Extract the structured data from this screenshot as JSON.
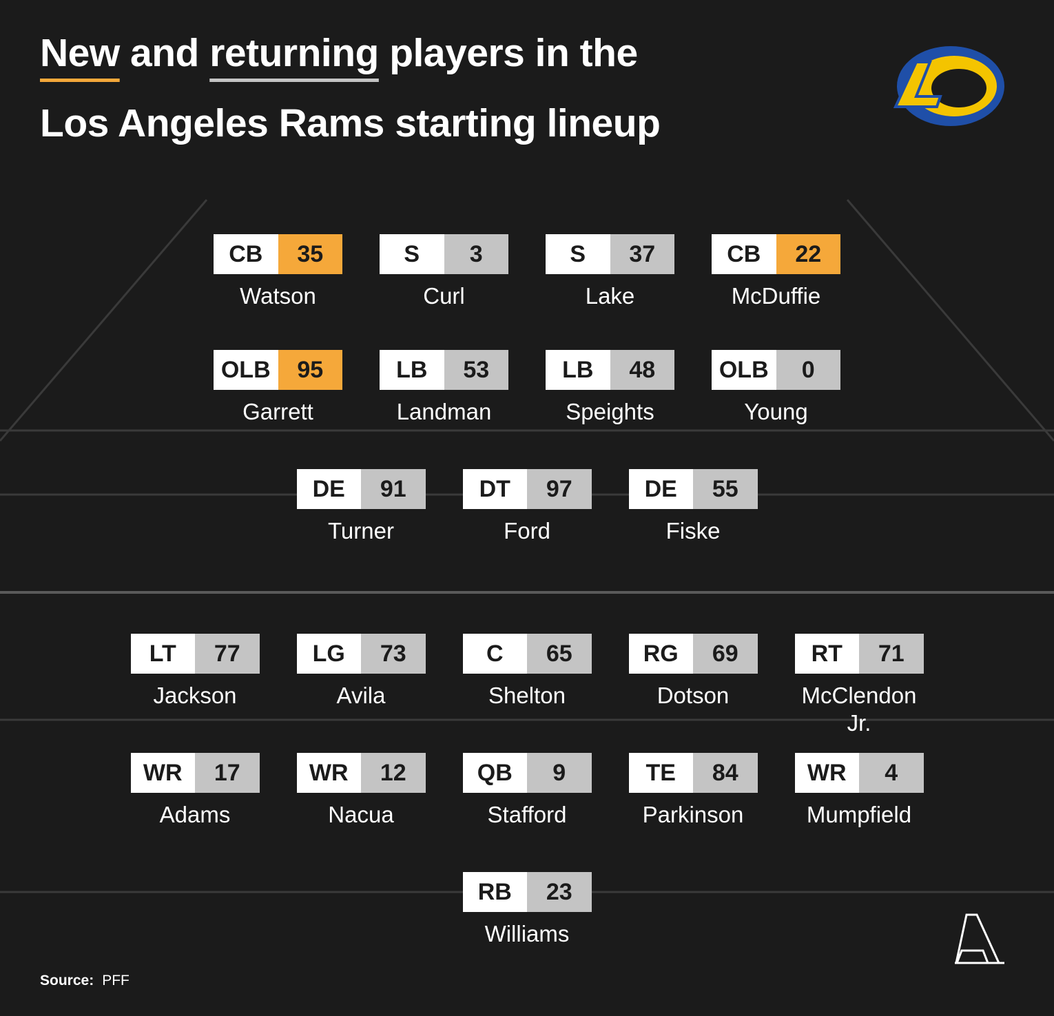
{
  "title": {
    "line1": [
      {
        "text": "New",
        "underline": "#f5a83a"
      },
      {
        "text": " and "
      },
      {
        "text": "returning",
        "underline": "#c4c4c4"
      },
      {
        "text": " players in the"
      }
    ],
    "line2": "Los Angeles Rams starting lineup"
  },
  "formation": [
    [
      {
        "position": "CB",
        "number": 35,
        "name": "Watson",
        "color": "#f5a83a"
      },
      {
        "position": "S",
        "number": 3,
        "name": "Curl",
        "color": "#c4c4c4"
      },
      {
        "position": "S",
        "number": 37,
        "name": "Lake",
        "color": "#c4c4c4"
      },
      {
        "position": "CB",
        "number": 22,
        "name": "McDuffie",
        "color": "#f5a83a"
      }
    ],
    [
      {
        "position": "OLB",
        "number": 95,
        "name": "Garrett",
        "color": "#f5a83a"
      },
      {
        "position": "LB",
        "number": 53,
        "name": "Landman",
        "color": "#c4c4c4"
      },
      {
        "position": "LB",
        "number": 48,
        "name": "Speights",
        "color": "#c4c4c4"
      },
      {
        "position": "OLB",
        "number": 0,
        "name": "Young",
        "color": "#c4c4c4"
      }
    ],
    [
      {
        "position": "DE",
        "number": 91,
        "name": "Turner",
        "color": "#c4c4c4"
      },
      {
        "position": "DT",
        "number": 97,
        "name": "Ford",
        "color": "#c4c4c4"
      },
      {
        "position": "DE",
        "number": 55,
        "name": "Fiske",
        "color": "#c4c4c4"
      }
    ],
    [
      {
        "position": "LT",
        "number": 77,
        "name": "Jackson",
        "color": "#c4c4c4"
      },
      {
        "position": "LG",
        "number": 73,
        "name": "Avila",
        "color": "#c4c4c4"
      },
      {
        "position": "C",
        "number": 65,
        "name": "Shelton",
        "color": "#c4c4c4"
      },
      {
        "position": "RG",
        "number": 69,
        "name": "Dotson",
        "color": "#c4c4c4"
      },
      {
        "position": "RT",
        "number": 71,
        "name": "McClendon Jr.",
        "color": "#c4c4c4"
      }
    ],
    [
      {
        "position": "WR",
        "number": 17,
        "name": "Adams",
        "color": "#c4c4c4"
      },
      {
        "position": "WR",
        "number": 12,
        "name": "Nacua",
        "color": "#c4c4c4"
      },
      {
        "position": "QB",
        "number": 9,
        "name": "Stafford",
        "color": "#c4c4c4"
      },
      {
        "position": "TE",
        "number": 84,
        "name": "Parkinson",
        "color": "#c4c4c4"
      },
      {
        "position": "WR",
        "number": 4,
        "name": "Mumpfield",
        "color": "#c4c4c4"
      }
    ],
    [
      {
        "position": "RB",
        "number": 23,
        "name": "Williams",
        "color": "#c4c4c4"
      }
    ]
  ],
  "source": {
    "label": "Source:",
    "text": "PFF"
  }
}
